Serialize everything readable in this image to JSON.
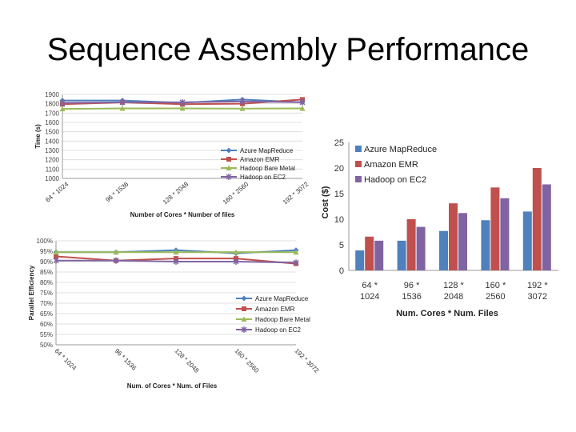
{
  "slide": {
    "title": "Sequence Assembly Performance"
  },
  "colors": {
    "azure": "#4f81bd",
    "emr": "#c0504d",
    "bare": "#9bbb59",
    "ec2": "#8064a2"
  },
  "chart_data": [
    {
      "type": "line",
      "ylabel": "Time (s)",
      "xlabel": "Number of Cores * Number of files",
      "categories": [
        "64 * 1024",
        "96 * 1536",
        "128 * 2048",
        "160 * 2560",
        "192 * 3072"
      ],
      "ylim": [
        1000,
        1900
      ],
      "yticks": [
        "1000",
        "1100",
        "1200",
        "1300",
        "1400",
        "1500",
        "1600",
        "1700",
        "1800",
        "1900"
      ],
      "legend_position": "right",
      "series": [
        {
          "name": "Azure MapReduce",
          "values": [
            1835,
            1835,
            1810,
            1845,
            1815
          ]
        },
        {
          "name": "Amazon EMR",
          "values": [
            1795,
            1815,
            1795,
            1800,
            1845
          ]
        },
        {
          "name": "Hadoop Bare Metal",
          "values": [
            1745,
            1750,
            1750,
            1748,
            1750
          ]
        },
        {
          "name": "Hadoop on EC2",
          "values": [
            1810,
            1815,
            1815,
            1825,
            1815
          ]
        }
      ]
    },
    {
      "type": "line",
      "ylabel": "Parallel Efficiency",
      "xlabel": "Num. of Cores * Num. of Files",
      "categories": [
        "64 * 1024",
        "96 * 1536",
        "128 * 2048",
        "160 * 2560",
        "192 * 3072"
      ],
      "ylim": [
        50,
        100
      ],
      "yticks": [
        "50%",
        "55%",
        "60%",
        "65%",
        "70%",
        "75%",
        "80%",
        "85%",
        "90%",
        "95%",
        "100%"
      ],
      "legend_position": "right",
      "series": [
        {
          "name": "Azure MapReduce",
          "values": [
            94.5,
            94.5,
            95.5,
            94,
            95.5
          ]
        },
        {
          "name": "Amazon EMR",
          "values": [
            92.5,
            90.5,
            91.5,
            91.5,
            89
          ]
        },
        {
          "name": "Hadoop Bare Metal",
          "values": [
            94.5,
            94.5,
            94.5,
            94.5,
            94.5
          ]
        },
        {
          "name": "Hadoop on EC2",
          "values": [
            90.5,
            90.5,
            90,
            90,
            89.5
          ]
        }
      ]
    },
    {
      "type": "bar",
      "ylabel": "Cost ($)",
      "xlabel": "Num. Cores * Num. Files",
      "categories": [
        [
          "64 *",
          "1024"
        ],
        [
          "96 *",
          "1536"
        ],
        [
          "128 *",
          "2048"
        ],
        [
          "160 *",
          "2560"
        ],
        [
          "192 *",
          "3072"
        ]
      ],
      "ylim": [
        0,
        25
      ],
      "yticks": [
        "0",
        "5",
        "10",
        "15",
        "20",
        "25"
      ],
      "legend_position": "top-left",
      "series": [
        {
          "name": "Azure MapReduce",
          "values": [
            3.9,
            5.8,
            7.7,
            9.8,
            11.5
          ]
        },
        {
          "name": "Amazon EMR",
          "values": [
            6.6,
            10,
            13.1,
            16.2,
            20
          ]
        },
        {
          "name": "Hadoop on EC2",
          "values": [
            5.8,
            8.5,
            11.2,
            14.1,
            16.8
          ]
        }
      ]
    }
  ]
}
